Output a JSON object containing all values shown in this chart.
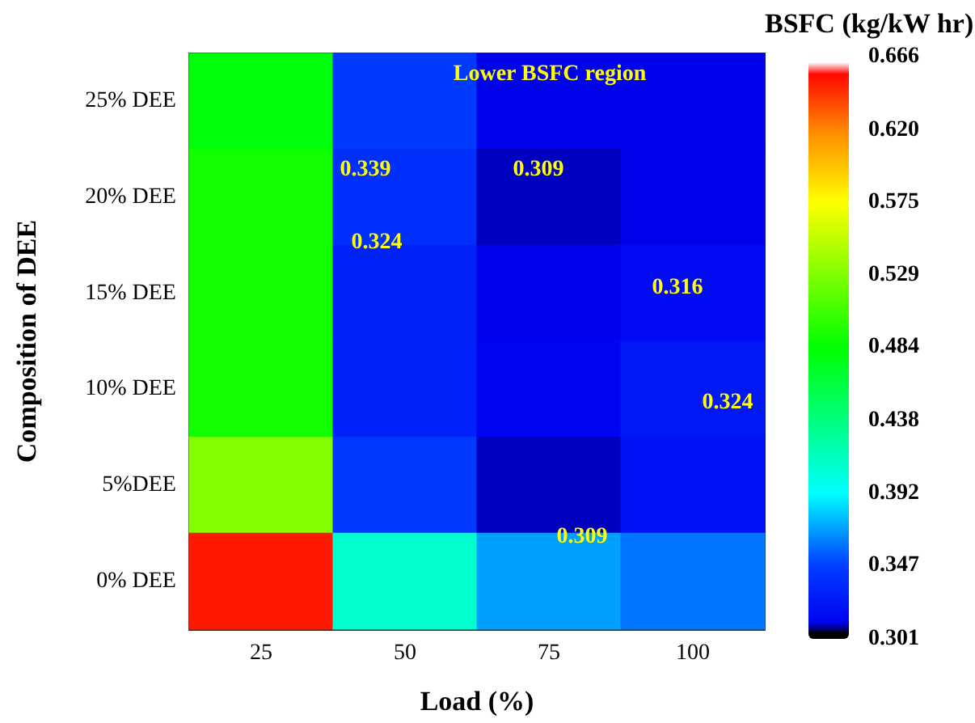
{
  "chart_data": {
    "type": "heatmap",
    "xlabel": "Load (%)",
    "ylabel": "Composition of DEE",
    "clabel": "BSFC (kg/kW hr)",
    "categories": [
      "25",
      "50",
      "75",
      "100"
    ],
    "y_categories": [
      "25% DEE",
      "20% DEE",
      "15% DEE",
      "10% DEE",
      "5%DEE",
      "0% DEE"
    ],
    "cells": [
      [
        0.48,
        0.345,
        0.31,
        0.31
      ],
      [
        0.49,
        0.339,
        0.309,
        0.31
      ],
      [
        0.49,
        0.33,
        0.31,
        0.316
      ],
      [
        0.49,
        0.33,
        0.312,
        0.324
      ],
      [
        0.53,
        0.345,
        0.309,
        0.32
      ],
      [
        0.65,
        0.41,
        0.37,
        0.36
      ]
    ],
    "clim": [
      0.301,
      0.666
    ],
    "cticks": [
      0.301,
      0.347,
      0.392,
      0.438,
      0.484,
      0.529,
      0.575,
      {
        "value": 0.62,
        "label": "0.620"
      },
      0.666
    ],
    "annotations": [
      "Lower BSFC region",
      "0.339",
      "0.309",
      "0.324",
      "0.316",
      "0.324",
      "0.309"
    ]
  }
}
